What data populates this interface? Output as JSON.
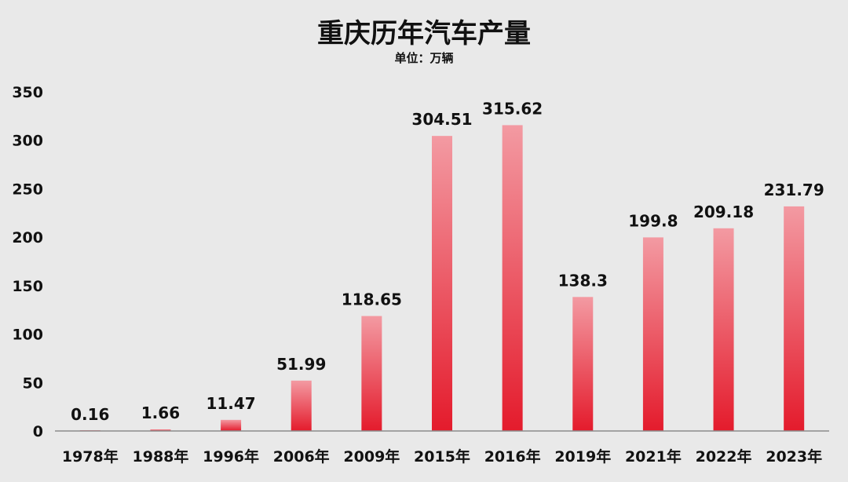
{
  "chart_data": {
    "type": "bar",
    "title": "重庆历年汽车产量",
    "subtitle": "单位：万辆",
    "xlabel": "",
    "ylabel": "",
    "ylim": [
      0,
      350
    ],
    "yticks": [
      0,
      50,
      100,
      150,
      200,
      250,
      300,
      350
    ],
    "grid": false,
    "legend": "none",
    "categories": [
      "1978年",
      "1988年",
      "1996年",
      "2006年",
      "2009年",
      "2015年",
      "2016年",
      "2019年",
      "2021年",
      "2022年",
      "2023年"
    ],
    "values": [
      0.16,
      1.66,
      11.47,
      51.99,
      118.65,
      304.51,
      315.62,
      138.3,
      199.8,
      209.18,
      231.79
    ],
    "value_labels": [
      "0.16",
      "1.66",
      "11.47",
      "51.99",
      "118.65",
      "304.51",
      "315.62",
      "138.3",
      "199.8",
      "209.18",
      "231.79"
    ],
    "colors": {
      "bar_top": "#f39aa2",
      "bar_bottom": "#e41b2c",
      "axis": "#8c8c8c"
    }
  }
}
